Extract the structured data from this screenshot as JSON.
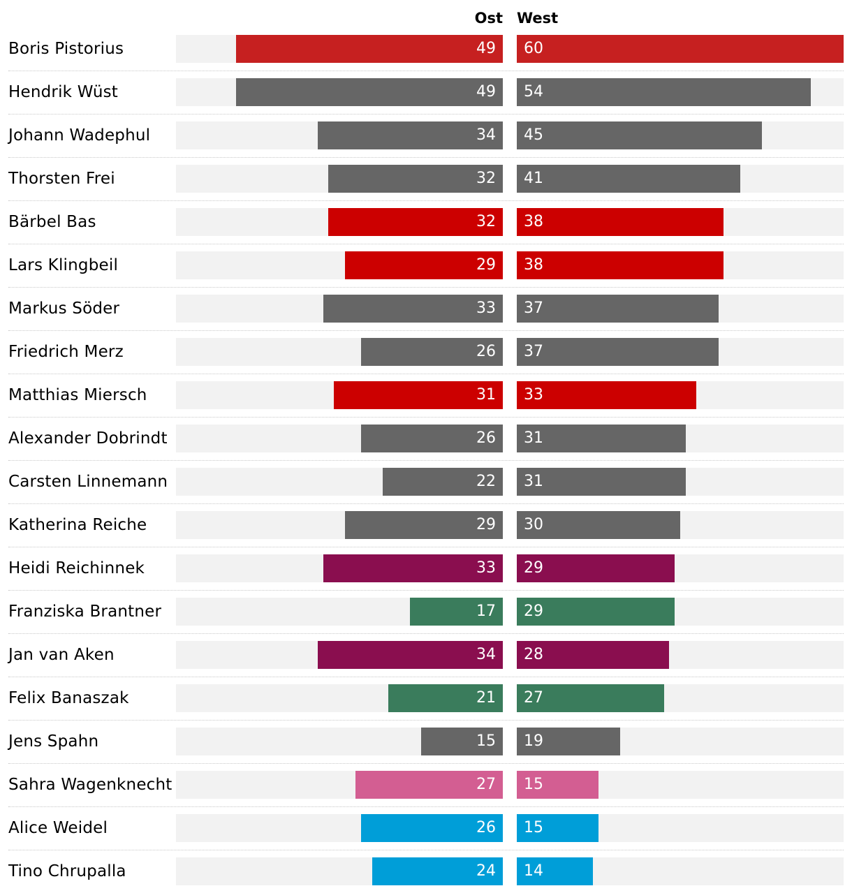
{
  "chart_data": {
    "type": "bar",
    "series_labels": {
      "ost": "Ost",
      "west": "West"
    },
    "max_value": 60,
    "party_colors": {
      "spd": "#cc0000",
      "spd_highlight": "#c62020",
      "union": "#666666",
      "linke": "#8a0e4f",
      "gruene": "#3a7c5c",
      "bsw": "#d35e92",
      "afd": "#009ed8"
    },
    "rows": [
      {
        "name": "Boris Pistorius",
        "ost": 49,
        "west": 60,
        "color": "#c62020"
      },
      {
        "name": "Hendrik Wüst",
        "ost": 49,
        "west": 54,
        "color": "#666666"
      },
      {
        "name": "Johann Wadephul",
        "ost": 34,
        "west": 45,
        "color": "#666666"
      },
      {
        "name": "Thorsten Frei",
        "ost": 32,
        "west": 41,
        "color": "#666666"
      },
      {
        "name": "Bärbel Bas",
        "ost": 32,
        "west": 38,
        "color": "#cc0000"
      },
      {
        "name": "Lars Klingbeil",
        "ost": 29,
        "west": 38,
        "color": "#cc0000"
      },
      {
        "name": "Markus Söder",
        "ost": 33,
        "west": 37,
        "color": "#666666"
      },
      {
        "name": "Friedrich Merz",
        "ost": 26,
        "west": 37,
        "color": "#666666"
      },
      {
        "name": "Matthias Miersch",
        "ost": 31,
        "west": 33,
        "color": "#cc0000"
      },
      {
        "name": "Alexander Dobrindt",
        "ost": 26,
        "west": 31,
        "color": "#666666"
      },
      {
        "name": "Carsten Linnemann",
        "ost": 22,
        "west": 31,
        "color": "#666666"
      },
      {
        "name": "Katherina Reiche",
        "ost": 29,
        "west": 30,
        "color": "#666666"
      },
      {
        "name": "Heidi Reichinnek",
        "ost": 33,
        "west": 29,
        "color": "#8a0e4f"
      },
      {
        "name": "Franziska Brantner",
        "ost": 17,
        "west": 29,
        "color": "#3a7c5c"
      },
      {
        "name": "Jan van Aken",
        "ost": 34,
        "west": 28,
        "color": "#8a0e4f"
      },
      {
        "name": "Felix Banaszak",
        "ost": 21,
        "west": 27,
        "color": "#3a7c5c"
      },
      {
        "name": "Jens Spahn",
        "ost": 15,
        "west": 19,
        "color": "#666666"
      },
      {
        "name": "Sahra Wagenknecht",
        "ost": 27,
        "west": 15,
        "color": "#d35e92"
      },
      {
        "name": "Alice Weidel",
        "ost": 26,
        "west": 15,
        "color": "#009ed8"
      },
      {
        "name": "Tino Chrupalla",
        "ost": 24,
        "west": 14,
        "color": "#009ed8"
      }
    ]
  }
}
